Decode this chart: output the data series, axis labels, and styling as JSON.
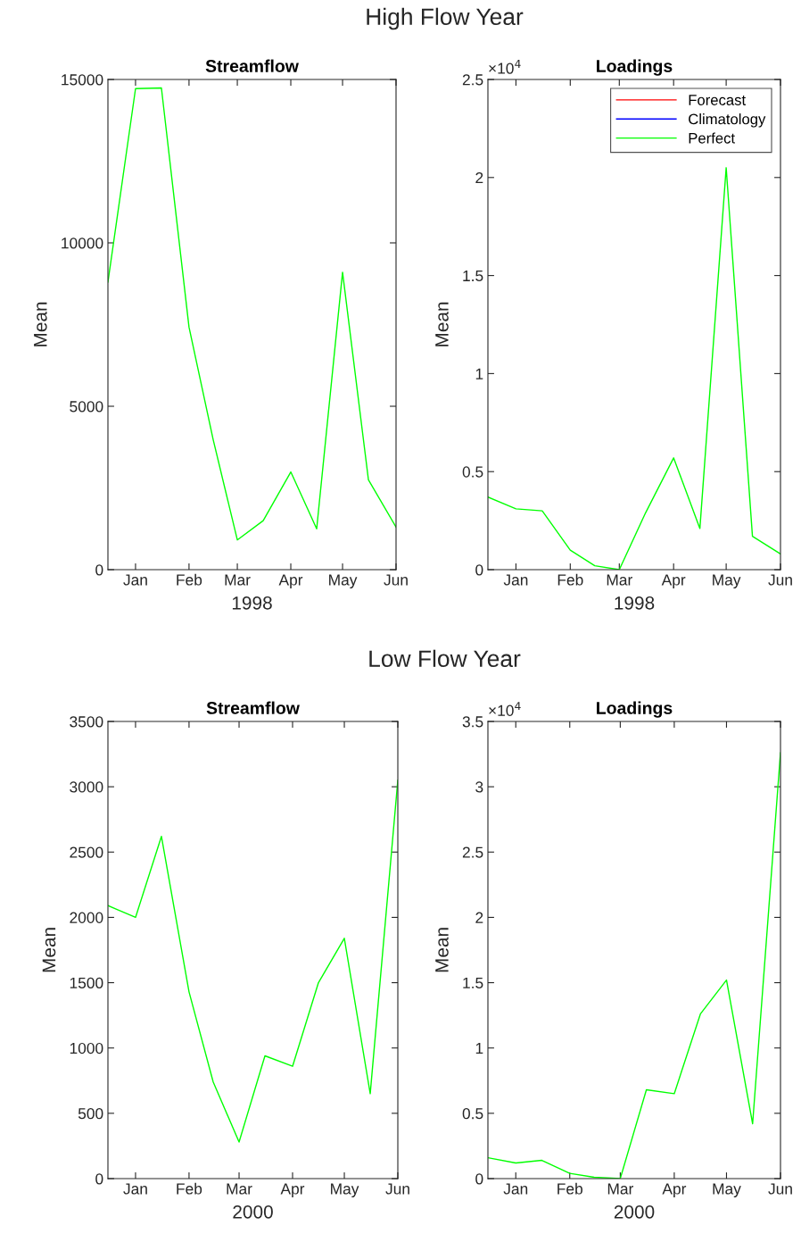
{
  "chart_data": [
    {
      "type": "line",
      "title": "Streamflow",
      "xlabel": "1998",
      "ylabel": "Mean",
      "annotations": [
        "High Flow Year"
      ],
      "x": [
        "1997-12-16",
        "1998-01-01",
        "1998-01-16",
        "1998-02-01",
        "1998-02-15",
        "1998-03-01",
        "1998-03-16",
        "1998-04-01",
        "1998-04-16",
        "1998-05-01",
        "1998-05-16",
        "1998-06-01"
      ],
      "series": [
        {
          "color": "#00ff00",
          "values": [
            8800,
            14720,
            14740,
            7420,
            3980,
            910,
            1500,
            2990,
            1250,
            9100,
            2750,
            1300
          ]
        }
      ],
      "xlim": [
        "1997-12-16",
        "1998-06-01"
      ],
      "xticks": [
        {
          "value": "1998-01-01",
          "label": "Jan"
        },
        {
          "value": "1998-02-01",
          "label": "Feb"
        },
        {
          "value": "1998-03-01",
          "label": "Mar"
        },
        {
          "value": "1998-04-01",
          "label": "Apr"
        },
        {
          "value": "1998-05-01",
          "label": "May"
        },
        {
          "value": "1998-06-01",
          "label": "Jun"
        }
      ],
      "ylim": [
        0,
        15000
      ],
      "yticks": [
        0,
        5000,
        10000,
        15000
      ],
      "grid": false,
      "legend": false
    },
    {
      "type": "line",
      "title": "Loadings",
      "xlabel": "1998",
      "ylabel": "Mean",
      "annotations": [
        "×10$^{4}$"
      ],
      "x": [
        "1997-12-16",
        "1998-01-01",
        "1998-01-16",
        "1998-02-01",
        "1998-02-15",
        "1998-03-01",
        "1998-03-16",
        "1998-04-01",
        "1998-04-16",
        "1998-05-01",
        "1998-05-16",
        "1998-06-01"
      ],
      "series": [
        {
          "name": "Forecast",
          "color": "#ff0000",
          "values": [
            null,
            null,
            null,
            null,
            null,
            null,
            null,
            null,
            null,
            null,
            null,
            null
          ]
        },
        {
          "name": "Climatology",
          "color": "#0000ff",
          "values": [
            null,
            null,
            null,
            null,
            null,
            null,
            null,
            null,
            null,
            null,
            null,
            null
          ]
        },
        {
          "name": "Perfect",
          "color": "#00ff00",
          "values": [
            0.37,
            0.31,
            0.3,
            0.1,
            0.02,
            0,
            0.29,
            0.57,
            0.21,
            2.05,
            0.17,
            0.08
          ]
        }
      ],
      "xlim": [
        "1997-12-16",
        "1998-06-01"
      ],
      "xticks": [
        {
          "value": "1998-01-01",
          "label": "Jan"
        },
        {
          "value": "1998-02-01",
          "label": "Feb"
        },
        {
          "value": "1998-03-01",
          "label": "Mar"
        },
        {
          "value": "1998-04-01",
          "label": "Apr"
        },
        {
          "value": "1998-05-01",
          "label": "May"
        },
        {
          "value": "1998-06-01",
          "label": "Jun"
        }
      ],
      "ylim": [
        0,
        2.5
      ],
      "yticks": [
        0,
        0.5,
        1,
        1.5,
        2,
        2.5
      ],
      "grid": false,
      "legend": "top right"
    },
    {
      "type": "line",
      "title": "Streamflow",
      "xlabel": "2000",
      "ylabel": "Mean",
      "annotations": [
        "Low Flow Year"
      ],
      "x": [
        "1999-12-16",
        "2000-01-01",
        "2000-01-16",
        "2000-02-01",
        "2000-02-15",
        "2000-03-01",
        "2000-03-16",
        "2000-04-01",
        "2000-04-16",
        "2000-05-01",
        "2000-05-16",
        "2000-06-01"
      ],
      "series": [
        {
          "color": "#00ff00",
          "values": [
            2090,
            2000,
            2620,
            1430,
            740,
            280,
            940,
            860,
            1500,
            1840,
            650,
            3050
          ]
        }
      ],
      "xlim": [
        "1999-12-16",
        "2000-06-01"
      ],
      "xticks": [
        {
          "value": "2000-01-01",
          "label": "Jan"
        },
        {
          "value": "2000-02-01",
          "label": "Feb"
        },
        {
          "value": "2000-03-01",
          "label": "Mar"
        },
        {
          "value": "2000-04-01",
          "label": "Apr"
        },
        {
          "value": "2000-05-01",
          "label": "May"
        },
        {
          "value": "2000-06-01",
          "label": "Jun"
        }
      ],
      "ylim": [
        0,
        3500
      ],
      "yticks": [
        0,
        500,
        1000,
        1500,
        2000,
        2500,
        3000,
        3500
      ],
      "grid": false,
      "legend": false
    },
    {
      "type": "line",
      "title": "Loadings",
      "xlabel": "2000",
      "ylabel": "Mean",
      "annotations": [
        "×10$^{4}$"
      ],
      "x": [
        "1999-12-16",
        "2000-01-01",
        "2000-01-16",
        "2000-02-01",
        "2000-02-15",
        "2000-03-01",
        "2000-03-16",
        "2000-04-01",
        "2000-04-16",
        "2000-05-01",
        "2000-05-16",
        "2000-06-01"
      ],
      "series": [
        {
          "color": "#00ff00",
          "values": [
            0.16,
            0.12,
            0.14,
            0.04,
            0.01,
            0,
            0.68,
            0.65,
            1.26,
            1.52,
            0.42,
            3.26
          ]
        }
      ],
      "xlim": [
        "1999-12-16",
        "2000-06-01"
      ],
      "xticks": [
        {
          "value": "2000-01-01",
          "label": "Jan"
        },
        {
          "value": "2000-02-01",
          "label": "Feb"
        },
        {
          "value": "2000-03-01",
          "label": "Mar"
        },
        {
          "value": "2000-04-01",
          "label": "Apr"
        },
        {
          "value": "2000-05-01",
          "label": "May"
        },
        {
          "value": "2000-06-01",
          "label": "Jun"
        }
      ],
      "ylim": [
        0,
        3.5
      ],
      "yticks": [
        0,
        0.5,
        1,
        1.5,
        2,
        2.5,
        3,
        3.5
      ],
      "grid": false,
      "legend": false
    }
  ]
}
